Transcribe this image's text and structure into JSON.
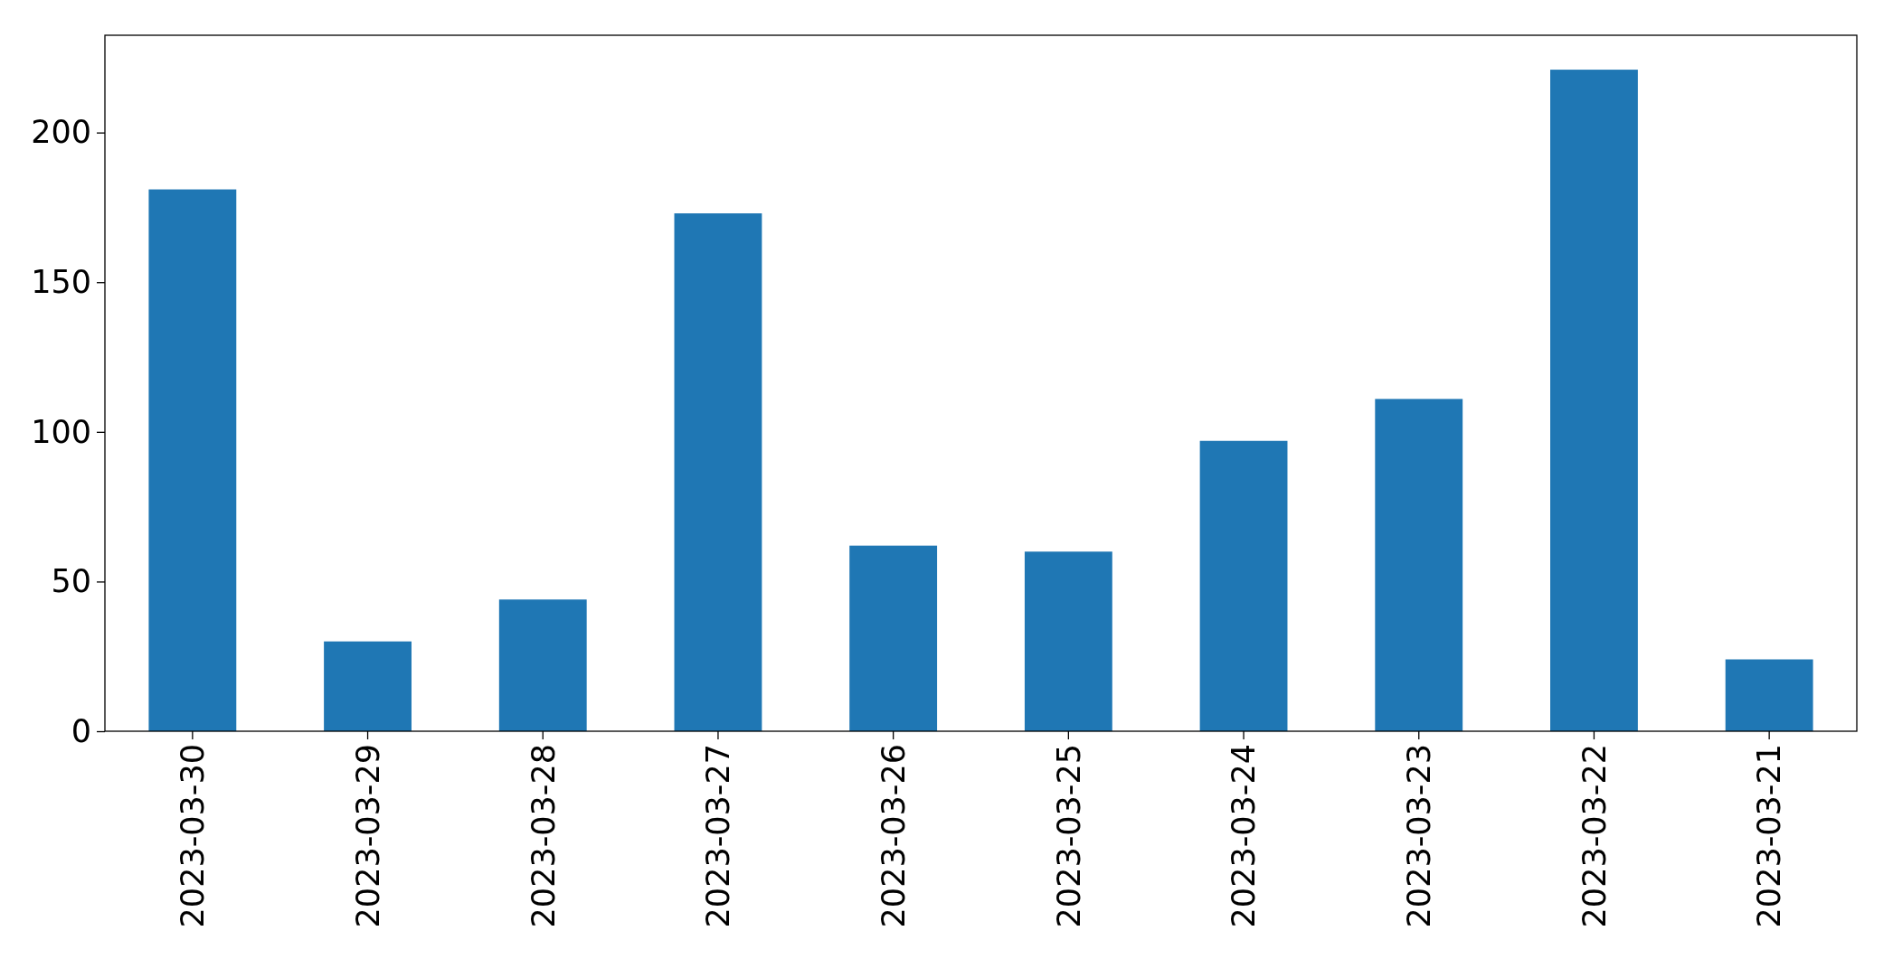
{
  "chart_data": {
    "type": "bar",
    "categories": [
      "2023-03-30",
      "2023-03-29",
      "2023-03-28",
      "2023-03-27",
      "2023-03-26",
      "2023-03-25",
      "2023-03-24",
      "2023-03-23",
      "2023-03-22",
      "2023-03-21"
    ],
    "values": [
      181,
      30,
      44,
      173,
      62,
      60,
      97,
      111,
      221,
      24
    ],
    "color": "#1f77b4",
    "ylim": [
      0,
      232.5
    ],
    "yticks": [
      0,
      50,
      100,
      150,
      200
    ],
    "grid": false
  }
}
